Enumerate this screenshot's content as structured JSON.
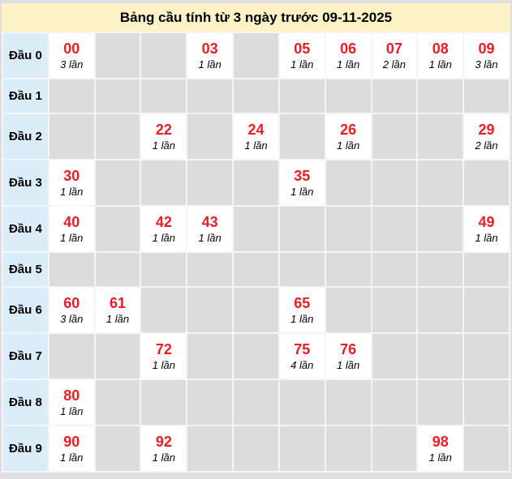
{
  "title": "Bảng cầu tính từ 3 ngày trước 09-11-2025",
  "table": {
    "rows": [
      {
        "label": "Đầu 0",
        "cells": [
          {
            "number": "00",
            "count": "3 lần"
          },
          null,
          null,
          {
            "number": "03",
            "count": "1 lần"
          },
          null,
          {
            "number": "05",
            "count": "1 lần"
          },
          {
            "number": "06",
            "count": "1 lần"
          },
          {
            "number": "07",
            "count": "2 lần"
          },
          {
            "number": "08",
            "count": "1 lần"
          },
          {
            "number": "09",
            "count": "3 lần"
          }
        ]
      },
      {
        "label": "Đầu 1",
        "cells": [
          null,
          null,
          null,
          null,
          null,
          null,
          null,
          null,
          null,
          null
        ]
      },
      {
        "label": "Đầu 2",
        "cells": [
          null,
          null,
          {
            "number": "22",
            "count": "1 lần"
          },
          null,
          {
            "number": "24",
            "count": "1 lần"
          },
          null,
          {
            "number": "26",
            "count": "1 lần"
          },
          null,
          null,
          {
            "number": "29",
            "count": "2 lần"
          }
        ]
      },
      {
        "label": "Đầu 3",
        "cells": [
          {
            "number": "30",
            "count": "1 lần"
          },
          null,
          null,
          null,
          null,
          {
            "number": "35",
            "count": "1 lần"
          },
          null,
          null,
          null,
          null
        ]
      },
      {
        "label": "Đầu 4",
        "cells": [
          {
            "number": "40",
            "count": "1 lần"
          },
          null,
          {
            "number": "42",
            "count": "1 lần"
          },
          {
            "number": "43",
            "count": "1 lần"
          },
          null,
          null,
          null,
          null,
          null,
          {
            "number": "49",
            "count": "1 lần"
          }
        ]
      },
      {
        "label": "Đầu 5",
        "cells": [
          null,
          null,
          null,
          null,
          null,
          null,
          null,
          null,
          null,
          null
        ]
      },
      {
        "label": "Đầu 6",
        "cells": [
          {
            "number": "60",
            "count": "3 lần"
          },
          {
            "number": "61",
            "count": "1 lần"
          },
          null,
          null,
          null,
          {
            "number": "65",
            "count": "1 lần"
          },
          null,
          null,
          null,
          null
        ]
      },
      {
        "label": "Đầu 7",
        "cells": [
          null,
          null,
          {
            "number": "72",
            "count": "1 lần"
          },
          null,
          null,
          {
            "number": "75",
            "count": "4 lần"
          },
          {
            "number": "76",
            "count": "1 lần"
          },
          null,
          null,
          null
        ]
      },
      {
        "label": "Đầu 8",
        "cells": [
          {
            "number": "80",
            "count": "1 lần"
          },
          null,
          null,
          null,
          null,
          null,
          null,
          null,
          null,
          null
        ]
      },
      {
        "label": "Đầu 9",
        "cells": [
          {
            "number": "90",
            "count": "1 lần"
          },
          null,
          {
            "number": "92",
            "count": "1 lần"
          },
          null,
          null,
          null,
          null,
          null,
          {
            "number": "98",
            "count": "1 lần"
          },
          null
        ]
      }
    ]
  },
  "colors": {
    "page_background": "#dfdfe3",
    "title_background": "#fcf2c5",
    "label_background": "#d9ecf7",
    "empty_cell_background": "#dcdcdc",
    "filled_cell_background": "#ffffff",
    "number_red": "#ec1c24",
    "table_border": "#7f7f7f"
  }
}
